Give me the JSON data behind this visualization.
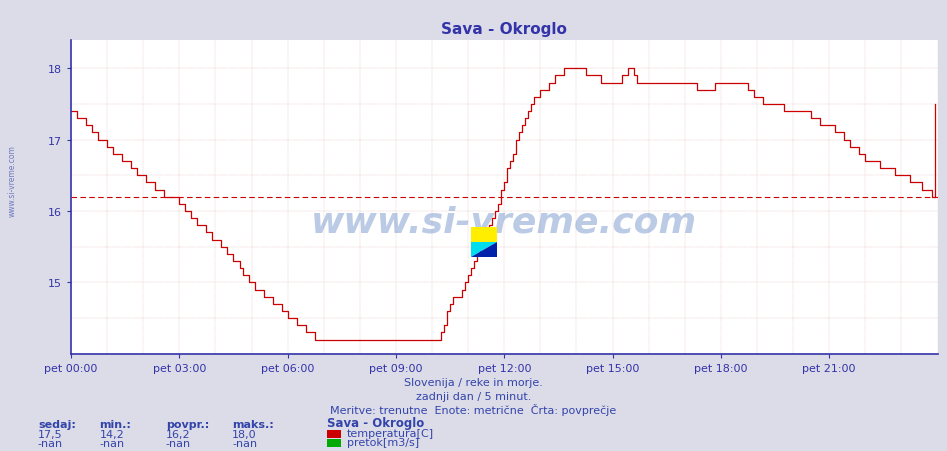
{
  "title": "Sava - Okroglo",
  "title_color": "#3333aa",
  "background_color": "#dcdce8",
  "plot_bg_color": "#ffffff",
  "line_color": "#cc0000",
  "avg_line_color": "#cc0000",
  "avg_value": 16.2,
  "ylim": [
    14.0,
    18.4
  ],
  "yticks": [
    15,
    16,
    17,
    18
  ],
  "ytick_extra": 18,
  "xlabel_color": "#3333aa",
  "ylabel_color": "#3333aa",
  "text_below1": "Slovenija / reke in morje.",
  "text_below2": "zadnji dan / 5 minut.",
  "text_below3": "Meritve: trenutne  Enote: metrične  Črta: povprečje",
  "label_sedaj": "sedaj:",
  "label_min": "min.:",
  "label_povpr": "povpr.:",
  "label_maks": "maks.:",
  "val_sedaj": "17,5",
  "val_min": "14,2",
  "val_povpr": "16,2",
  "val_maks": "18,0",
  "val_sedaj2": "-nan",
  "val_min2": "-nan",
  "val_povpr2": "-nan",
  "val_maks2": "-nan",
  "station_label": "Sava - Okroglo",
  "legend_temp": "temperatura[C]",
  "legend_flow": "pretok[m3/s]",
  "legend_temp_color": "#cc0000",
  "legend_flow_color": "#00aa00",
  "watermark_text": "www.si-vreme.com",
  "xtick_labels": [
    "pet 00:00",
    "pet 03:00",
    "pet 06:00",
    "pet 09:00",
    "pet 12:00",
    "pet 15:00",
    "pet 18:00",
    "pet 21:00"
  ],
  "xtick_positions": [
    0,
    36,
    72,
    108,
    144,
    180,
    216,
    252
  ],
  "total_points": 288,
  "temperatures": [
    17.4,
    17.4,
    17.3,
    17.3,
    17.3,
    17.2,
    17.2,
    17.1,
    17.1,
    17.0,
    17.0,
    17.0,
    16.9,
    16.9,
    16.8,
    16.8,
    16.8,
    16.7,
    16.7,
    16.7,
    16.6,
    16.6,
    16.5,
    16.5,
    16.5,
    16.4,
    16.4,
    16.4,
    16.3,
    16.3,
    16.3,
    16.2,
    16.2,
    16.2,
    16.2,
    16.2,
    16.1,
    16.1,
    16.0,
    16.0,
    15.9,
    15.9,
    15.8,
    15.8,
    15.8,
    15.7,
    15.7,
    15.6,
    15.6,
    15.6,
    15.5,
    15.5,
    15.4,
    15.4,
    15.3,
    15.3,
    15.2,
    15.1,
    15.1,
    15.0,
    15.0,
    14.9,
    14.9,
    14.9,
    14.8,
    14.8,
    14.8,
    14.7,
    14.7,
    14.7,
    14.6,
    14.6,
    14.5,
    14.5,
    14.5,
    14.4,
    14.4,
    14.4,
    14.3,
    14.3,
    14.3,
    14.2,
    14.2,
    14.2,
    14.2,
    14.2,
    14.2,
    14.2,
    14.2,
    14.2,
    14.2,
    14.2,
    14.2,
    14.2,
    14.2,
    14.2,
    14.2,
    14.2,
    14.2,
    14.2,
    14.2,
    14.2,
    14.2,
    14.2,
    14.2,
    14.2,
    14.2,
    14.2,
    14.2,
    14.2,
    14.2,
    14.2,
    14.2,
    14.2,
    14.2,
    14.2,
    14.2,
    14.2,
    14.2,
    14.2,
    14.2,
    14.2,
    14.2,
    14.3,
    14.4,
    14.6,
    14.7,
    14.8,
    14.8,
    14.8,
    14.9,
    15.0,
    15.1,
    15.2,
    15.3,
    15.4,
    15.5,
    15.6,
    15.7,
    15.8,
    15.9,
    16.0,
    16.1,
    16.3,
    16.4,
    16.6,
    16.7,
    16.8,
    17.0,
    17.1,
    17.2,
    17.3,
    17.4,
    17.5,
    17.6,
    17.6,
    17.7,
    17.7,
    17.7,
    17.8,
    17.8,
    17.9,
    17.9,
    17.9,
    18.0,
    18.0,
    18.0,
    18.0,
    18.0,
    18.0,
    18.0,
    17.9,
    17.9,
    17.9,
    17.9,
    17.9,
    17.8,
    17.8,
    17.8,
    17.8,
    17.8,
    17.8,
    17.8,
    17.9,
    17.9,
    18.0,
    18.0,
    17.9,
    17.8,
    17.8,
    17.8,
    17.8,
    17.8,
    17.8,
    17.8,
    17.8,
    17.8,
    17.8,
    17.8,
    17.8,
    17.8,
    17.8,
    17.8,
    17.8,
    17.8,
    17.8,
    17.8,
    17.8,
    17.7,
    17.7,
    17.7,
    17.7,
    17.7,
    17.7,
    17.8,
    17.8,
    17.8,
    17.8,
    17.8,
    17.8,
    17.8,
    17.8,
    17.8,
    17.8,
    17.8,
    17.7,
    17.7,
    17.6,
    17.6,
    17.6,
    17.5,
    17.5,
    17.5,
    17.5,
    17.5,
    17.5,
    17.5,
    17.4,
    17.4,
    17.4,
    17.4,
    17.4,
    17.4,
    17.4,
    17.4,
    17.4,
    17.3,
    17.3,
    17.3,
    17.2,
    17.2,
    17.2,
    17.2,
    17.2,
    17.1,
    17.1,
    17.1,
    17.0,
    17.0,
    16.9,
    16.9,
    16.9,
    16.8,
    16.8,
    16.7,
    16.7,
    16.7,
    16.7,
    16.7,
    16.6,
    16.6,
    16.6,
    16.6,
    16.6,
    16.5,
    16.5,
    16.5,
    16.5,
    16.5,
    16.4,
    16.4,
    16.4,
    16.4,
    16.3,
    16.3,
    16.3,
    16.2,
    17.5
  ]
}
